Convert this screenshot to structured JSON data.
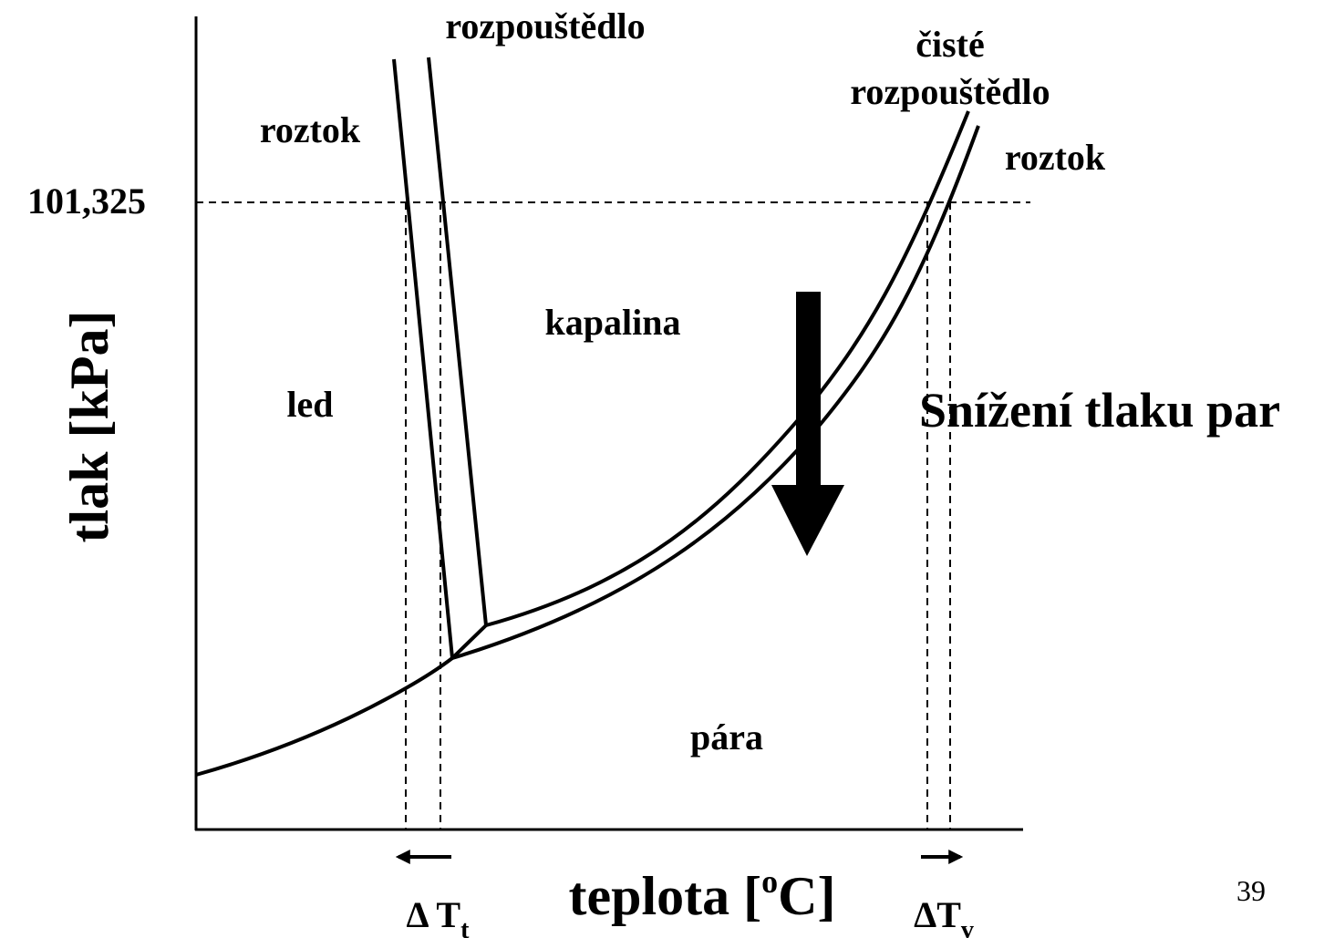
{
  "axes": {
    "y_label": "tlak [kPa]",
    "x_label": {
      "text": "teplota [",
      "sup": "o",
      "end": "C]"
    },
    "y_marker": "101,325"
  },
  "regions": {
    "solution": "roztok",
    "ice": "led",
    "liquid": "kapalina",
    "vapor": "pára"
  },
  "curve_labels": {
    "solvent": "rozpouštědlo",
    "pure_solvent": [
      "čisté",
      "rozpouštědlo"
    ],
    "solution": "roztok"
  },
  "annotation": "Snížení tlaku par",
  "deltas": [
    {
      "symbol": "Δ T",
      "sub": "t"
    },
    {
      "symbol": "ΔT",
      "sub": "v"
    }
  ],
  "page_number": "39"
}
